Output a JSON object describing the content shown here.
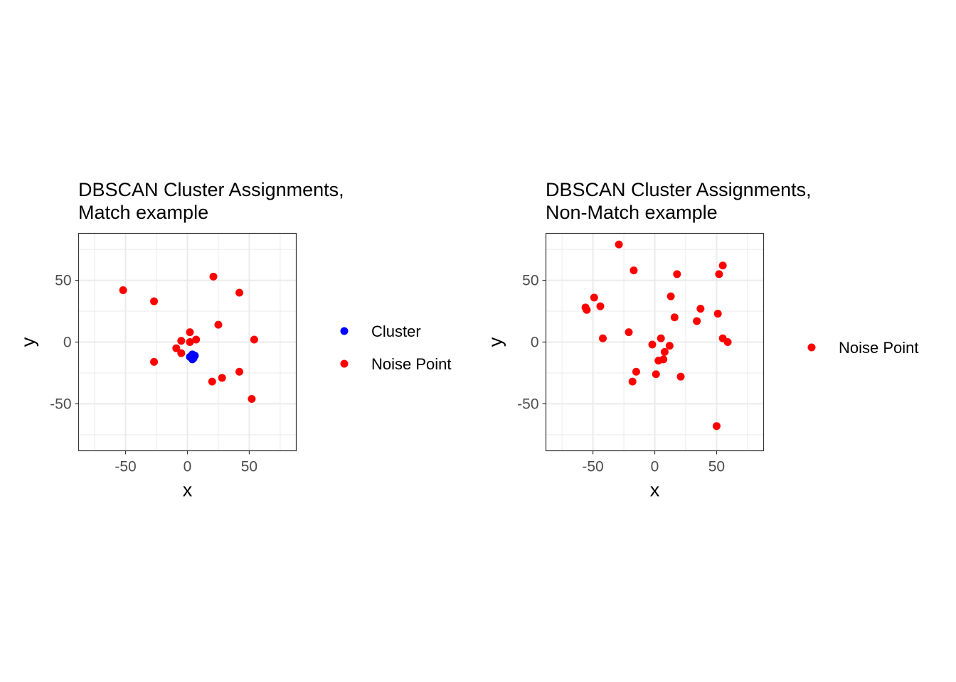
{
  "chart_data": [
    {
      "type": "scatter",
      "title": [
        "DBSCAN Cluster Assignments,",
        "Match example"
      ],
      "xlabel": "x",
      "ylabel": "y",
      "xlim": [
        -88,
        88
      ],
      "ylim": [
        -88,
        88
      ],
      "xticks": [
        -50,
        0,
        50
      ],
      "xtick_labels": [
        "-50",
        "0",
        "50"
      ],
      "yticks": [
        -50,
        0,
        50
      ],
      "ytick_labels": [
        "-50",
        "0",
        "50"
      ],
      "grid": true,
      "legend": "right",
      "series": [
        {
          "name": "Cluster",
          "color": "#0000ff",
          "points": [
            [
              4,
              -10
            ],
            [
              6,
              -11
            ],
            [
              3,
              -12
            ],
            [
              5,
              -13
            ],
            [
              4,
              -14
            ],
            [
              2,
              -12
            ],
            [
              5,
              -11.5
            ]
          ]
        },
        {
          "name": "Noise Point",
          "color": "#ff0000",
          "points": [
            [
              -52,
              42
            ],
            [
              -27,
              33
            ],
            [
              -27,
              -16
            ],
            [
              21,
              53
            ],
            [
              42,
              40
            ],
            [
              25,
              14
            ],
            [
              54,
              2
            ],
            [
              2,
              8
            ],
            [
              7,
              2
            ],
            [
              2,
              0
            ],
            [
              -5,
              1
            ],
            [
              -9,
              -5
            ],
            [
              -5,
              -9
            ],
            [
              42,
              -24
            ],
            [
              28,
              -29
            ],
            [
              20,
              -32
            ],
            [
              52,
              -46
            ]
          ]
        }
      ]
    },
    {
      "type": "scatter",
      "title": [
        "DBSCAN Cluster Assignments,",
        "Non-Match example"
      ],
      "xlabel": "x",
      "ylabel": "y",
      "xlim": [
        -88,
        88
      ],
      "ylim": [
        -88,
        88
      ],
      "xticks": [
        -50,
        0,
        50
      ],
      "xtick_labels": [
        "-50",
        "0",
        "50"
      ],
      "yticks": [
        -50,
        0,
        50
      ],
      "ytick_labels": [
        "-50",
        "0",
        "50"
      ],
      "grid": true,
      "legend": "right",
      "series": [
        {
          "name": "Noise Point",
          "color": "#ff0000",
          "points": [
            [
              -29,
              79
            ],
            [
              -17,
              58
            ],
            [
              -56,
              28
            ],
            [
              -55,
              26
            ],
            [
              -49,
              36
            ],
            [
              -44,
              29
            ],
            [
              -42,
              3
            ],
            [
              -21,
              8
            ],
            [
              -2,
              -2
            ],
            [
              5,
              3
            ],
            [
              12,
              -3
            ],
            [
              8,
              -8
            ],
            [
              7,
              -14
            ],
            [
              3,
              -15
            ],
            [
              1,
              -26
            ],
            [
              -15,
              -24
            ],
            [
              -18,
              -32
            ],
            [
              21,
              -28
            ],
            [
              18,
              55
            ],
            [
              13,
              37
            ],
            [
              16,
              20
            ],
            [
              37,
              27
            ],
            [
              34,
              17
            ],
            [
              51,
              23
            ],
            [
              52,
              55
            ],
            [
              55,
              62
            ],
            [
              55,
              3
            ],
            [
              59,
              0
            ],
            [
              50,
              -68
            ]
          ]
        }
      ]
    }
  ]
}
